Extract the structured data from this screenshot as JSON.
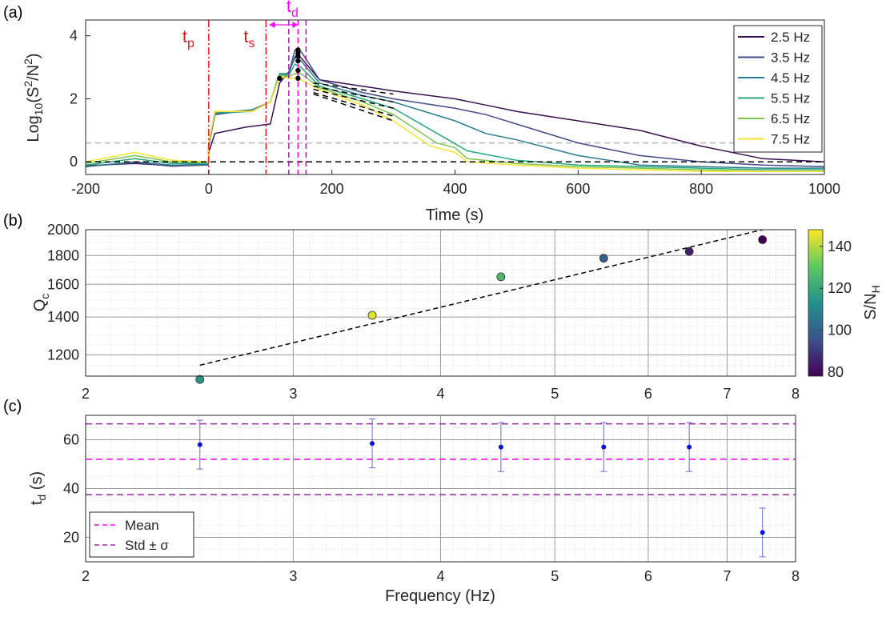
{
  "chart_data": [
    {
      "type": "line",
      "panel_label": "(a)",
      "xlabel": "Time (s)",
      "ylabel_base": "Log",
      "ylabel_sub": "10",
      "ylabel_rest": "(S",
      "ylabel_sup1": "2",
      "ylabel_mid": "/N",
      "ylabel_sup2": "2",
      "ylabel_end": ")",
      "xlim": [
        -200,
        1000
      ],
      "ylim": [
        -0.4,
        4.5
      ],
      "xticks": [
        -200,
        0,
        200,
        400,
        600,
        800,
        1000
      ],
      "yticks": [
        0,
        2,
        4
      ],
      "hlines": {
        "zero": 0,
        "threshold": 0.6
      },
      "vlines": {
        "tp": 0,
        "ts": 93,
        "td_start": 130,
        "td_mid": 145,
        "td_end": 158
      },
      "annotations": {
        "tp": {
          "base": "t",
          "sub": "p"
        },
        "ts": {
          "base": "t",
          "sub": "s"
        },
        "td": {
          "base": "t",
          "sub": "d"
        }
      },
      "legend_position": "top-right",
      "series": [
        {
          "name": "2.5 Hz",
          "color": "#3b0f4f",
          "points": [
            [
              -200,
              -0.12
            ],
            [
              -120,
              -0.05
            ],
            [
              -60,
              -0.12
            ],
            [
              -1,
              -0.08
            ],
            [
              0,
              0.3
            ],
            [
              10,
              0.9
            ],
            [
              60,
              1.1
            ],
            [
              100,
              1.2
            ],
            [
              115,
              2.5
            ],
            [
              130,
              2.85
            ],
            [
              140,
              3.3
            ],
            [
              150,
              3.3
            ],
            [
              180,
              2.6
            ],
            [
              250,
              2.4
            ],
            [
              300,
              2.25
            ],
            [
              400,
              2.0
            ],
            [
              450,
              1.8
            ],
            [
              500,
              1.6
            ],
            [
              600,
              1.3
            ],
            [
              700,
              1.0
            ],
            [
              800,
              0.5
            ],
            [
              900,
              0.1
            ],
            [
              1000,
              0.0
            ]
          ]
        },
        {
          "name": "3.5 Hz",
          "color": "#414a8a",
          "points": [
            [
              -200,
              -0.15
            ],
            [
              -120,
              -0.02
            ],
            [
              -60,
              -0.14
            ],
            [
              -1,
              -0.1
            ],
            [
              0,
              0.5
            ],
            [
              10,
              1.5
            ],
            [
              70,
              1.65
            ],
            [
              100,
              1.9
            ],
            [
              115,
              2.75
            ],
            [
              130,
              2.8
            ],
            [
              140,
              3.55
            ],
            [
              150,
              3.5
            ],
            [
              180,
              2.6
            ],
            [
              250,
              2.2
            ],
            [
              300,
              2.0
            ],
            [
              400,
              1.7
            ],
            [
              450,
              1.5
            ],
            [
              500,
              1.2
            ],
            [
              600,
              0.6
            ],
            [
              700,
              0.2
            ],
            [
              800,
              0.0
            ],
            [
              900,
              -0.1
            ],
            [
              1000,
              -0.15
            ]
          ]
        },
        {
          "name": "4.5 Hz",
          "color": "#2b7b8e",
          "points": [
            [
              -200,
              -0.15
            ],
            [
              -120,
              0.0
            ],
            [
              -60,
              -0.1
            ],
            [
              -1,
              -0.08
            ],
            [
              0,
              0.6
            ],
            [
              10,
              1.55
            ],
            [
              70,
              1.65
            ],
            [
              100,
              1.9
            ],
            [
              115,
              2.8
            ],
            [
              130,
              2.8
            ],
            [
              140,
              3.35
            ],
            [
              150,
              3.2
            ],
            [
              180,
              2.5
            ],
            [
              250,
              2.1
            ],
            [
              300,
              1.9
            ],
            [
              400,
              1.3
            ],
            [
              450,
              0.9
            ],
            [
              500,
              0.7
            ],
            [
              600,
              0.2
            ],
            [
              700,
              -0.1
            ],
            [
              800,
              -0.15
            ],
            [
              900,
              -0.2
            ],
            [
              1000,
              -0.2
            ]
          ]
        },
        {
          "name": "5.5 Hz",
          "color": "#28a87a",
          "points": [
            [
              -200,
              -0.1
            ],
            [
              -120,
              0.1
            ],
            [
              -60,
              -0.05
            ],
            [
              -1,
              -0.05
            ],
            [
              0,
              0.6
            ],
            [
              10,
              1.55
            ],
            [
              70,
              1.6
            ],
            [
              100,
              1.9
            ],
            [
              115,
              2.8
            ],
            [
              130,
              2.75
            ],
            [
              140,
              3.1
            ],
            [
              150,
              3.0
            ],
            [
              180,
              2.4
            ],
            [
              250,
              2.0
            ],
            [
              300,
              1.7
            ],
            [
              380,
              0.8
            ],
            [
              420,
              0.35
            ],
            [
              500,
              0.05
            ],
            [
              600,
              -0.1
            ],
            [
              700,
              -0.15
            ],
            [
              800,
              -0.2
            ],
            [
              900,
              -0.25
            ],
            [
              1000,
              -0.25
            ]
          ]
        },
        {
          "name": "6.5 Hz",
          "color": "#7cc44c",
          "points": [
            [
              -200,
              -0.05
            ],
            [
              -120,
              0.2
            ],
            [
              -60,
              0.0
            ],
            [
              -1,
              -0.03
            ],
            [
              0,
              0.6
            ],
            [
              10,
              1.6
            ],
            [
              70,
              1.6
            ],
            [
              100,
              1.9
            ],
            [
              115,
              2.75
            ],
            [
              130,
              2.7
            ],
            [
              140,
              2.8
            ],
            [
              150,
              2.8
            ],
            [
              180,
              2.35
            ],
            [
              250,
              1.9
            ],
            [
              300,
              1.5
            ],
            [
              370,
              0.6
            ],
            [
              400,
              0.45
            ],
            [
              420,
              0.1
            ],
            [
              500,
              -0.05
            ],
            [
              600,
              -0.15
            ],
            [
              700,
              -0.2
            ],
            [
              800,
              -0.25
            ],
            [
              900,
              -0.3
            ],
            [
              1000,
              -0.3
            ]
          ]
        },
        {
          "name": "7.5 Hz",
          "color": "#f5e32d",
          "points": [
            [
              -200,
              0.0
            ],
            [
              -120,
              0.3
            ],
            [
              -60,
              0.05
            ],
            [
              -1,
              0.0
            ],
            [
              0,
              0.6
            ],
            [
              10,
              1.6
            ],
            [
              70,
              1.6
            ],
            [
              100,
              1.9
            ],
            [
              115,
              2.7
            ],
            [
              130,
              2.65
            ],
            [
              140,
              2.65
            ],
            [
              150,
              2.6
            ],
            [
              180,
              2.3
            ],
            [
              250,
              1.8
            ],
            [
              300,
              1.3
            ],
            [
              360,
              0.5
            ],
            [
              400,
              0.3
            ],
            [
              420,
              0.0
            ],
            [
              500,
              -0.1
            ],
            [
              600,
              -0.2
            ],
            [
              700,
              -0.25
            ],
            [
              800,
              -0.3
            ],
            [
              900,
              -0.3
            ],
            [
              1000,
              -0.3
            ]
          ]
        }
      ],
      "markers": [
        [
          115,
          2.65
        ],
        [
          145,
          2.65
        ],
        [
          145,
          2.9
        ],
        [
          145,
          3.2
        ],
        [
          145,
          3.35
        ],
        [
          145,
          3.45
        ],
        [
          145,
          3.55
        ]
      ],
      "fit_lines": [
        {
          "x": [
            170,
            300
          ],
          "y": [
            2.5,
            2.15
          ]
        },
        {
          "x": [
            170,
            300
          ],
          "y": [
            2.4,
            1.9
          ]
        },
        {
          "x": [
            170,
            300
          ],
          "y": [
            2.3,
            1.7
          ]
        },
        {
          "x": [
            170,
            300
          ],
          "y": [
            2.2,
            1.45
          ]
        },
        {
          "x": [
            170,
            300
          ],
          "y": [
            2.15,
            1.3
          ]
        }
      ]
    },
    {
      "type": "scatter",
      "panel_label": "(b)",
      "xscale": "log",
      "yscale": "log",
      "xlim": [
        2,
        8
      ],
      "ylim": [
        1100,
        2000
      ],
      "xticks": [
        2,
        3,
        4,
        5,
        6,
        7,
        8
      ],
      "yticks": [
        1200,
        1400,
        1600,
        1800,
        2000
      ],
      "ylabel_base": "Q",
      "ylabel_sub": "c",
      "x": [
        2.5,
        3.5,
        4.5,
        5.5,
        6.5,
        7.5
      ],
      "y": [
        1085,
        1410,
        1650,
        1780,
        1830,
        1920
      ],
      "color_values": [
        115,
        145,
        125,
        100,
        85,
        78
      ],
      "fit_line": {
        "x": [
          2.5,
          7.5
        ],
        "y": [
          1150,
          2000
        ]
      },
      "colorbar": {
        "label_base": "S/N",
        "label_sub": "H",
        "range": [
          78,
          148
        ],
        "ticks": [
          80,
          100,
          120,
          140
        ]
      }
    },
    {
      "type": "scatter",
      "panel_label": "(c)",
      "xscale": "log",
      "xlim": [
        2,
        8
      ],
      "ylim": [
        10,
        70
      ],
      "xticks": [
        2,
        3,
        4,
        5,
        6,
        7,
        8
      ],
      "yticks": [
        20,
        40,
        60
      ],
      "xlabel": "Frequency (Hz)",
      "ylabel_base": "t",
      "ylabel_sub": "d",
      "ylabel_rest": " (s)",
      "x": [
        2.5,
        3.5,
        4.5,
        5.5,
        6.5,
        7.5
      ],
      "y": [
        58,
        58.5,
        57,
        57,
        57,
        22
      ],
      "err": [
        10,
        10,
        10,
        10,
        10,
        10
      ],
      "mean": 52,
      "std_band": [
        37.5,
        66.5
      ],
      "legend": [
        {
          "label": "Mean",
          "color": "#ff00ff"
        },
        {
          "label": "Std ± σ",
          "color": "#9b2aa6"
        }
      ]
    }
  ]
}
